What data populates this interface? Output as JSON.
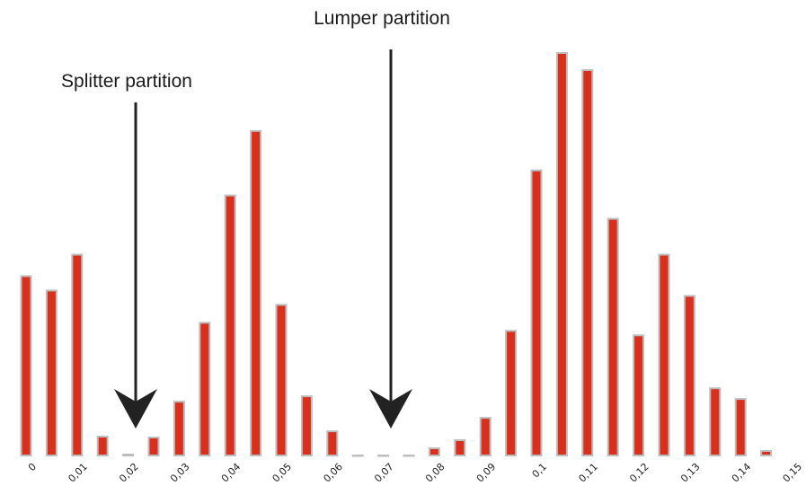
{
  "colors": {
    "bar_fill": "#d9301e",
    "bar_stroke": "#bdbdbd",
    "arrow": "#222222"
  },
  "chart_data": {
    "type": "bar",
    "title": "",
    "xlabel": "",
    "ylabel": "",
    "grid": false,
    "legend": "none",
    "x_tick_labels": [
      "0",
      "0,01",
      "0,02",
      "0,03",
      "0,04",
      "0,05",
      "0,06",
      "0,07",
      "0,08",
      "0,09",
      "0,1",
      "0,11",
      "0,12",
      "0,13",
      "0,14",
      "0,15"
    ],
    "x_tick_values": [
      0,
      0.01,
      0.02,
      0.03,
      0.04,
      0.05,
      0.06,
      0.07,
      0.08,
      0.09,
      0.1,
      0.11,
      0.12,
      0.13,
      0.14,
      0.15
    ],
    "xlim": [
      0,
      0.15
    ],
    "ylim": [
      0,
      450
    ],
    "x": [
      0,
      0.005,
      0.01,
      0.015,
      0.02,
      0.025,
      0.03,
      0.035,
      0.04,
      0.045,
      0.05,
      0.055,
      0.06,
      0.065,
      0.07,
      0.075,
      0.08,
      0.085,
      0.09,
      0.095,
      0.1,
      0.105,
      0.11,
      0.115,
      0.12,
      0.125,
      0.13,
      0.135,
      0.14,
      0.145
    ],
    "values": [
      200,
      184,
      224,
      21,
      1,
      20,
      60,
      148,
      290,
      362,
      168,
      66,
      27,
      0,
      0,
      0,
      8,
      17,
      42,
      139,
      318,
      449,
      430,
      264,
      134,
      224,
      178,
      75,
      63,
      5
    ],
    "annotations": [
      {
        "text": "Splitter partition",
        "x": 0.0215
      },
      {
        "text": "Lumper partition",
        "x": 0.0705
      }
    ]
  }
}
